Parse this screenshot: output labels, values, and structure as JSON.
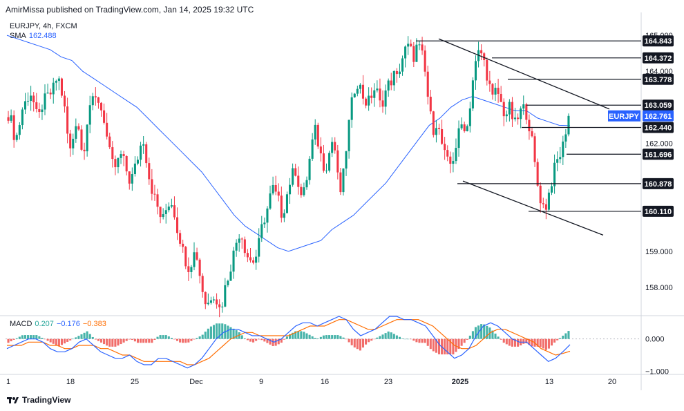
{
  "header": {
    "published": "AmirMissa published on TradingView.com, Jan 14, 2025 19:32 UTC"
  },
  "legend": {
    "symbol": "EURJPY, 4h, FXCM",
    "sma_label": "SMA",
    "sma_value": "162.488"
  },
  "macd_legend": {
    "label": "MACD",
    "hist": "0.207",
    "macd": "−0.176",
    "signal": "−0.383"
  },
  "footer": {
    "brand": "TradingView"
  },
  "colors": {
    "up": "#089981",
    "down": "#f23645",
    "sma": "#2962ff",
    "macd": "#2962ff",
    "signal": "#ff6d00",
    "hist_up": "#26a69a",
    "hist_down": "#ef5350",
    "tag": "#2962ff"
  },
  "chart_data": {
    "type": "candlestick",
    "symbol": "EURJPY",
    "timeframe": "4h",
    "ylim": [
      157.25,
      165.5
    ],
    "y_ticks": [
      "165.000",
      "164.000",
      "162.000",
      "159.000",
      "158.000"
    ],
    "x_ticks": [
      "1",
      "18",
      "25",
      "Dec",
      "9",
      "16",
      "23",
      "2025",
      "13",
      "20"
    ],
    "price_tag": {
      "name": "EURJPY",
      "value": "162.761"
    },
    "levels": [
      {
        "value": 164.843,
        "label": "164.843"
      },
      {
        "value": 164.372,
        "label": "164.372"
      },
      {
        "value": 163.778,
        "label": "163.778"
      },
      {
        "value": 163.059,
        "label": "163.059"
      },
      {
        "value": 162.44,
        "label": "162.440"
      },
      {
        "value": 161.696,
        "label": "161.696"
      },
      {
        "value": 160.878,
        "label": "160.878"
      },
      {
        "value": 160.11,
        "label": "160.110"
      }
    ],
    "close_path": [
      162.8,
      162.6,
      162.1,
      162.3,
      162.9,
      163.1,
      163.3,
      163.4,
      163.0,
      162.6,
      163.0,
      163.2,
      163.3,
      163.4,
      163.6,
      163.9,
      163.5,
      163.0,
      162.2,
      161.7,
      162.4,
      162.8,
      161.8,
      161.9,
      162.7,
      163.2,
      163.1,
      163.3,
      163.0,
      162.7,
      162.1,
      161.6,
      161.3,
      161.4,
      161.7,
      161.5,
      161.2,
      160.9,
      161.2,
      161.5,
      161.9,
      162.1,
      161.5,
      160.9,
      160.6,
      160.3,
      160.0,
      159.9,
      160.2,
      160.4,
      160.3,
      159.7,
      159.4,
      159.0,
      158.7,
      158.5,
      158.9,
      159.0,
      158.4,
      157.9,
      157.5,
      157.6,
      157.9,
      157.7,
      157.4,
      157.6,
      158.1,
      158.4,
      158.8,
      159.2,
      159.5,
      159.4,
      159.0,
      158.8,
      158.7,
      158.8,
      159.2,
      159.7,
      160.0,
      160.3,
      160.8,
      160.6,
      160.4,
      160.0,
      160.3,
      160.8,
      161.1,
      161.3,
      160.9,
      160.5,
      160.7,
      161.3,
      161.9,
      162.4,
      162.0,
      161.6,
      161.3,
      161.5,
      162.1,
      161.9,
      161.0,
      160.6,
      161.4,
      162.3,
      163.0,
      163.5,
      163.7,
      163.5,
      163.2,
      163.1,
      163.3,
      163.5,
      163.4,
      163.0,
      163.3,
      163.6,
      163.7,
      163.9,
      163.8,
      164.2,
      164.5,
      164.7,
      164.6,
      164.4,
      164.7,
      164.6,
      164.3,
      163.5,
      162.8,
      162.4,
      162.6,
      162.2,
      161.8,
      161.5,
      161.4,
      161.6,
      162.0,
      162.4,
      162.6,
      162.3,
      163.0,
      163.8,
      164.3,
      164.6,
      164.4,
      164.0,
      163.6,
      163.2,
      163.5,
      163.3,
      162.9,
      162.8,
      163.0,
      162.7,
      162.5,
      162.8,
      163.0,
      162.9,
      162.5,
      162.0,
      161.2,
      160.6,
      160.3,
      160.2,
      160.6,
      161.0,
      161.4,
      161.6,
      161.8,
      162.3,
      162.76
    ],
    "sma": [
      165.0,
      164.9,
      164.8,
      164.7,
      164.6,
      164.4,
      164.3,
      164.0,
      163.8,
      163.6,
      163.4,
      163.2,
      163.0,
      162.7,
      162.4,
      162.1,
      161.8,
      161.5,
      161.2,
      160.8,
      160.4,
      160.0,
      159.7,
      159.5,
      159.3,
      159.1,
      159.0,
      159.1,
      159.2,
      159.3,
      159.6,
      159.8,
      160.0,
      160.3,
      160.6,
      160.9,
      161.3,
      161.7,
      162.1,
      162.5,
      162.7,
      163.0,
      163.2,
      163.3,
      163.2,
      163.1,
      163.0,
      162.9,
      162.9,
      162.7,
      162.6,
      162.5,
      162.49
    ],
    "macd": [
      -0.3,
      -0.2,
      -0.1,
      0.0,
      0.0,
      -0.1,
      -0.3,
      -0.4,
      -0.4,
      -0.3,
      -0.1,
      0.0,
      -0.2,
      -0.4,
      -0.5,
      -0.6,
      -0.6,
      -0.5,
      -0.7,
      -0.8,
      -0.8,
      -0.6,
      -0.6,
      -0.7,
      -0.8,
      -0.9,
      -0.8,
      -0.6,
      -0.3,
      0.0,
      0.2,
      0.3,
      0.3,
      0.2,
      0.1,
      0.1,
      0.0,
      -0.1,
      0.0,
      0.2,
      0.4,
      0.5,
      0.5,
      0.4,
      0.5,
      0.6,
      0.7,
      0.6,
      0.3,
      0.1,
      0.2,
      0.3,
      0.5,
      0.7,
      0.7,
      0.6,
      0.6,
      0.5,
      0.4,
      0.1,
      -0.2,
      -0.4,
      -0.6,
      -0.5,
      -0.3,
      0.1,
      0.4,
      0.5,
      0.4,
      0.2,
      0.0,
      -0.1,
      -0.1,
      -0.3,
      -0.5,
      -0.7,
      -0.6,
      -0.4,
      -0.176
    ],
    "signal": [
      -0.2,
      -0.2,
      -0.2,
      -0.1,
      -0.1,
      -0.1,
      -0.2,
      -0.2,
      -0.3,
      -0.3,
      -0.2,
      -0.2,
      -0.2,
      -0.3,
      -0.3,
      -0.4,
      -0.5,
      -0.5,
      -0.6,
      -0.7,
      -0.7,
      -0.7,
      -0.7,
      -0.7,
      -0.7,
      -0.8,
      -0.8,
      -0.7,
      -0.6,
      -0.4,
      -0.2,
      0.0,
      0.1,
      0.2,
      0.2,
      0.1,
      0.1,
      0.1,
      0.1,
      0.1,
      0.2,
      0.3,
      0.4,
      0.4,
      0.4,
      0.5,
      0.6,
      0.6,
      0.5,
      0.4,
      0.3,
      0.3,
      0.4,
      0.5,
      0.6,
      0.6,
      0.6,
      0.6,
      0.5,
      0.4,
      0.2,
      0.0,
      -0.2,
      -0.3,
      -0.3,
      -0.2,
      0.0,
      0.2,
      0.3,
      0.3,
      0.2,
      0.1,
      0.0,
      -0.1,
      -0.3,
      -0.4,
      -0.5,
      -0.45,
      -0.383
    ],
    "macd_ylim": [
      -1.1,
      0.7
    ],
    "macd_ticks": [
      "0.000",
      "−1.000"
    ]
  }
}
